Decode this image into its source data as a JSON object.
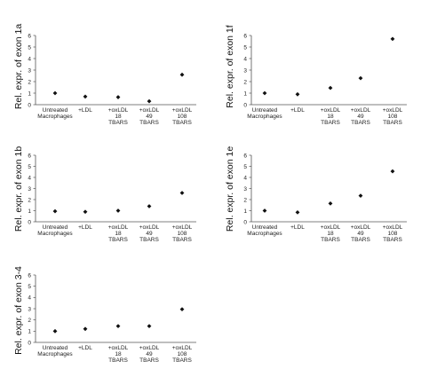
{
  "chart_data": [
    {
      "type": "scatter",
      "ylabel": "Rel. expr. of exon 1a",
      "categories": [
        [
          "Untreated",
          "Macrophages"
        ],
        [
          "+LDL"
        ],
        [
          "+oxLDL",
          "18",
          "TBARS"
        ],
        [
          "+oxLDL",
          "49",
          "TBARS"
        ],
        [
          "+oxLDL",
          "108",
          "TBARS"
        ]
      ],
      "values": [
        1.0,
        0.7,
        0.65,
        0.3,
        2.6
      ],
      "ylim": [
        0,
        6
      ],
      "yticks": [
        "0",
        "1",
        "2",
        "3",
        "4",
        "5",
        "6"
      ],
      "grid": false
    },
    {
      "type": "scatter",
      "ylabel": "Rel. expr. of exon 1f",
      "categories": [
        [
          "Untreated",
          "Macrophages"
        ],
        [
          "+LDL"
        ],
        [
          "+oxLDL",
          "18",
          "TBARS"
        ],
        [
          "+oxLDL",
          "49",
          "TBARS"
        ],
        [
          "+oxLDL",
          "108",
          "TBARS"
        ]
      ],
      "values": [
        1.0,
        0.9,
        1.45,
        2.3,
        5.7
      ],
      "ylim": [
        0,
        6
      ],
      "yticks": [
        "0",
        "1",
        "2",
        "3",
        "4",
        "5",
        "6"
      ],
      "grid": false
    },
    {
      "type": "scatter",
      "ylabel": "Rel. expr. of exon 1b",
      "categories": [
        [
          "Untreated",
          "Macrophages"
        ],
        [
          "+LDL"
        ],
        [
          "+oxLDL",
          "18",
          "TBARS"
        ],
        [
          "+oxLDL",
          "49",
          "TBARS"
        ],
        [
          "+oxLDL",
          "108",
          "TBARS"
        ]
      ],
      "values": [
        0.95,
        0.9,
        1.0,
        1.4,
        2.6
      ],
      "ylim": [
        0,
        6
      ],
      "yticks": [
        "0",
        "1",
        "2",
        "3",
        "4",
        "5",
        "6"
      ],
      "grid": false
    },
    {
      "type": "scatter",
      "ylabel": "Rel. expr. of exon 1e",
      "categories": [
        [
          "Untreated",
          "Macrophages"
        ],
        [
          "+LDL"
        ],
        [
          "+oxLDL",
          "18",
          "TBARS"
        ],
        [
          "+oxLDL",
          "49",
          "TBARS"
        ],
        [
          "+oxLDL",
          "108",
          "TBARS"
        ]
      ],
      "values": [
        1.0,
        0.85,
        1.65,
        2.35,
        4.55
      ],
      "ylim": [
        0,
        6
      ],
      "yticks": [
        "0",
        "1",
        "2",
        "3",
        "4",
        "5",
        "6"
      ],
      "grid": false
    },
    {
      "type": "scatter",
      "ylabel": "Rel. expr. of exon 3-4",
      "categories": [
        [
          "Untreated",
          "Macrophages"
        ],
        [
          "+LDL"
        ],
        [
          "+oxLDL",
          "18",
          "TBARS"
        ],
        [
          "+oxLDL",
          "49",
          "TBARS"
        ],
        [
          "+oxLDL",
          "108",
          "TBARS"
        ]
      ],
      "values": [
        1.0,
        1.2,
        1.45,
        1.45,
        2.95
      ],
      "ylim": [
        0,
        6
      ],
      "yticks": [
        "0",
        "1",
        "2",
        "3",
        "4",
        "5",
        "6"
      ],
      "grid": false
    }
  ]
}
